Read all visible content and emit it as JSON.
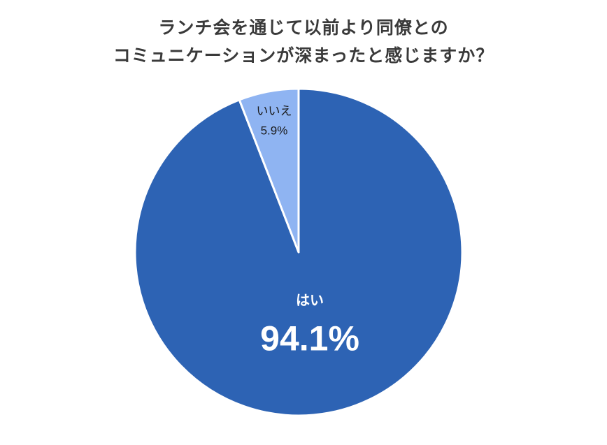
{
  "chart_data": {
    "type": "pie",
    "title_lines": [
      "ランチ会を通じて以前より同僚との",
      "コミュニケーションが深まったと感じますか？"
    ],
    "slices": [
      {
        "label": "はい",
        "value": 94.1,
        "value_label": "94.1%",
        "color": "#2d63b4"
      },
      {
        "label": "いいえ",
        "value": 5.9,
        "value_label": "5.9%",
        "color": "#8fb4f2"
      }
    ],
    "start_angle": "12 o'clock",
    "direction": "clockwise",
    "legend": "none",
    "label_colors": {
      "はい": "#ffffff",
      "いいえ": "#1a1a1a"
    }
  }
}
